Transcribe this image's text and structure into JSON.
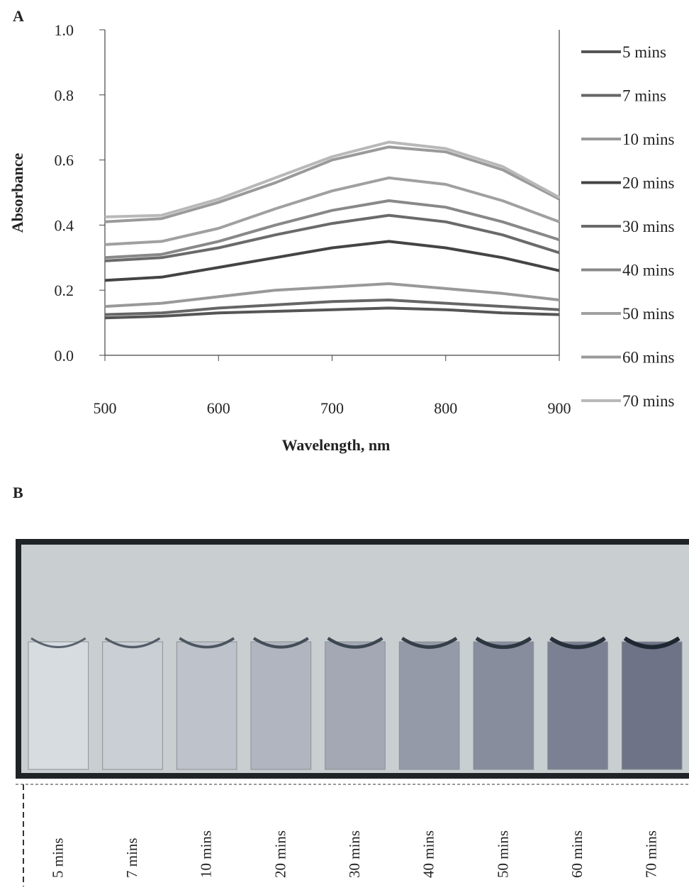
{
  "chart_data": {
    "type": "line",
    "panel_label": "A",
    "x_label": "Wavelength, nm",
    "y_label": "Absorbance",
    "x": [
      500,
      550,
      600,
      650,
      700,
      750,
      800,
      850,
      900
    ],
    "xlim": [
      500,
      900
    ],
    "xticks": [
      500,
      600,
      700,
      800,
      900
    ],
    "ylim": [
      0,
      1
    ],
    "yticks": [
      {
        "value": 0,
        "label": "0.0"
      },
      0.2,
      0.4,
      0.6,
      0.8,
      {
        "value": 1,
        "label": "1.0"
      }
    ],
    "legend": "right",
    "series": [
      {
        "name": "5 mins",
        "color": "#555555",
        "values": [
          0.115,
          0.12,
          0.13,
          0.135,
          0.14,
          0.145,
          0.14,
          0.13,
          0.125
        ]
      },
      {
        "name": "7 mins",
        "color": "#666666",
        "values": [
          0.125,
          0.13,
          0.145,
          0.155,
          0.165,
          0.17,
          0.16,
          0.15,
          0.14
        ]
      },
      {
        "name": "10 mins",
        "color": "#999999",
        "values": [
          0.15,
          0.16,
          0.18,
          0.2,
          0.21,
          0.22,
          0.205,
          0.19,
          0.17
        ]
      },
      {
        "name": "20 mins",
        "color": "#444444",
        "values": [
          0.23,
          0.24,
          0.27,
          0.3,
          0.33,
          0.35,
          0.33,
          0.3,
          0.26
        ]
      },
      {
        "name": "30 mins",
        "color": "#6a6a6a",
        "values": [
          0.29,
          0.3,
          0.33,
          0.37,
          0.405,
          0.43,
          0.41,
          0.37,
          0.315
        ]
      },
      {
        "name": "40 mins",
        "color": "#888888",
        "values": [
          0.3,
          0.31,
          0.35,
          0.4,
          0.445,
          0.475,
          0.455,
          0.41,
          0.355
        ]
      },
      {
        "name": "50 mins",
        "color": "#a0a0a0",
        "values": [
          0.34,
          0.35,
          0.39,
          0.45,
          0.505,
          0.545,
          0.525,
          0.475,
          0.41
        ]
      },
      {
        "name": "60 mins",
        "color": "#9a9a9a",
        "values": [
          0.41,
          0.42,
          0.47,
          0.53,
          0.6,
          0.64,
          0.625,
          0.57,
          0.48
        ]
      },
      {
        "name": "70 mins",
        "color": "#b8b8b8",
        "values": [
          0.425,
          0.43,
          0.48,
          0.545,
          0.61,
          0.655,
          0.635,
          0.58,
          0.485
        ]
      }
    ]
  },
  "photo": {
    "panel_label": "B",
    "labels": [
      "5 mins",
      "7 mins",
      "10 mins",
      "20 mins",
      "30 mins",
      "40 mins",
      "50 mins",
      "60 mins",
      "70 mins"
    ]
  }
}
